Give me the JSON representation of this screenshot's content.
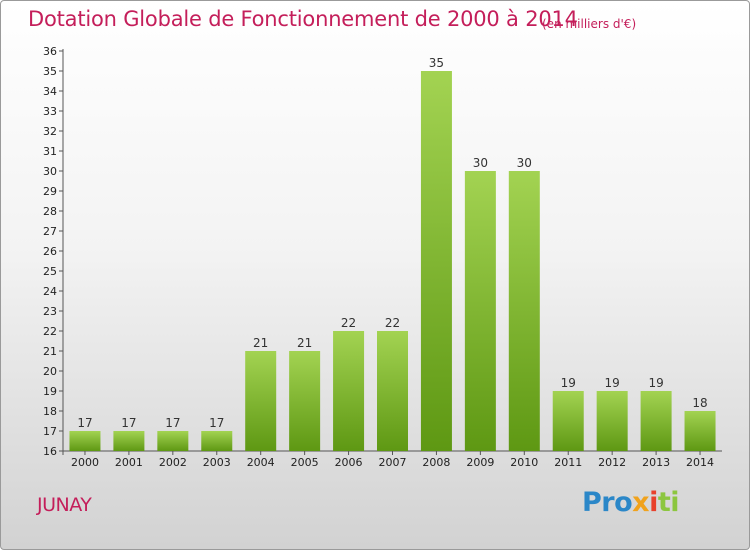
{
  "chart_data": {
    "type": "bar",
    "title": "Dotation Globale de Fonctionnement de 2000 à 2014",
    "unit_note": "(en milliers d'€)",
    "xlabel": "",
    "ylabel": "",
    "ylim": [
      16,
      36
    ],
    "yticks": [
      16,
      17,
      18,
      19,
      20,
      21,
      22,
      23,
      24,
      25,
      26,
      27,
      28,
      29,
      30,
      31,
      32,
      33,
      34,
      35,
      36
    ],
    "categories": [
      "2000",
      "2001",
      "2002",
      "2003",
      "2004",
      "2005",
      "2006",
      "2007",
      "2008",
      "2009",
      "2010",
      "2011",
      "2012",
      "2013",
      "2014"
    ],
    "values": [
      17,
      17,
      17,
      17,
      21,
      21,
      22,
      22,
      35,
      30,
      30,
      19,
      19,
      19,
      18
    ],
    "grid": false,
    "bar_color_top": "#a3d352",
    "bar_color_bottom": "#5e9813"
  },
  "city": "JUNAY",
  "logo": {
    "p1": "Pro",
    "p2": "x",
    "p3": "i",
    "p4": "ti",
    "full": "Proxiti"
  },
  "colors": {
    "title": "#c41e5a",
    "axis": "#555555"
  }
}
